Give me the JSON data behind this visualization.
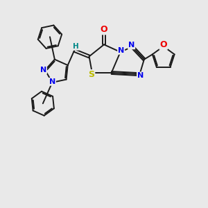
{
  "bg_color": "#e9e9e9",
  "bond_color": "#1a1a1a",
  "n_color": "#0000ee",
  "o_color": "#ee0000",
  "s_color": "#bbbb00",
  "h_color": "#008888",
  "line_width": 1.4,
  "fig_width": 3.0,
  "fig_height": 3.0,
  "dpi": 100,
  "xlim": [
    -2,
    12
  ],
  "ylim": [
    -5,
    7
  ]
}
